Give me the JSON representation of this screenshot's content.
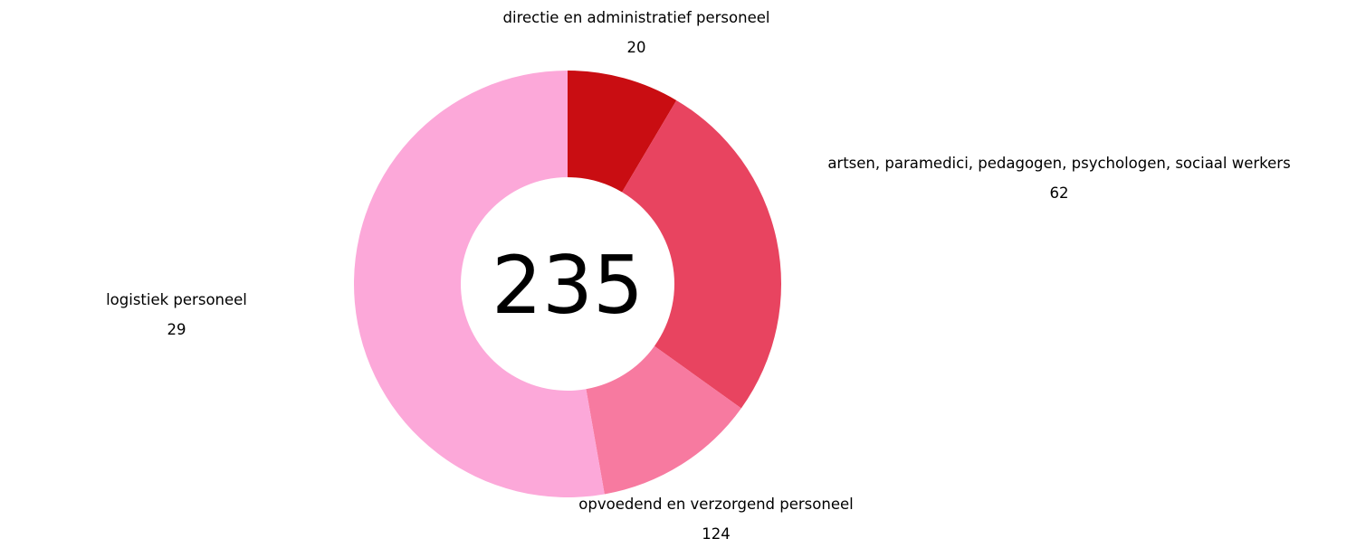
{
  "chart_data": {
    "type": "donut",
    "categories": [
      "directie en administratief personeel",
      "artsen, paramedici, pedagogen, psychologen, sociaal werkers",
      "logistiek personeel",
      "opvoedend en verzorgend personeel"
    ],
    "values": [
      20,
      62,
      29,
      124
    ],
    "colors": [
      "#c90d12",
      "#e84460",
      "#f77aa0",
      "#fca8d9"
    ],
    "total": 235
  }
}
